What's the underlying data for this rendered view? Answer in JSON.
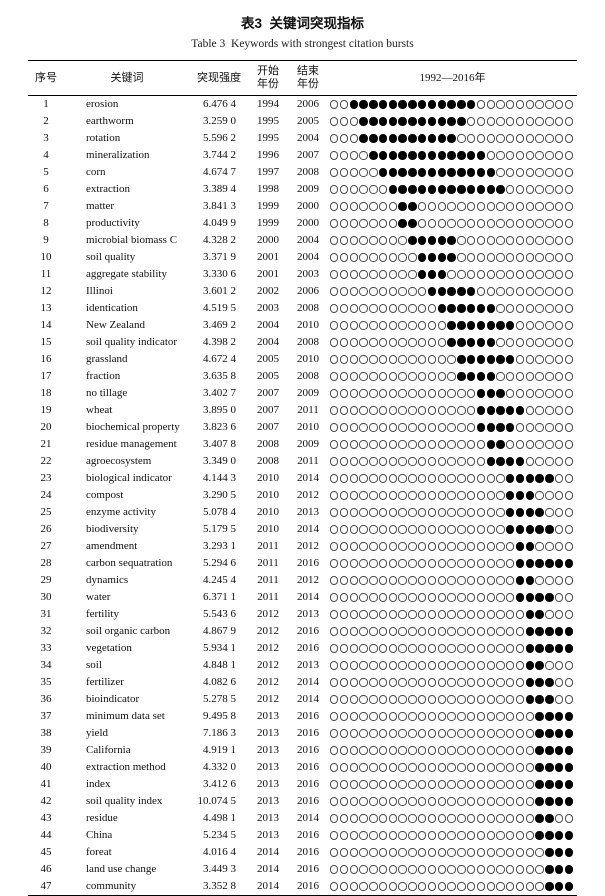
{
  "title_cn": "表3  关键词突现指标",
  "title_en": "Table 3  Keywords with strongest citation bursts",
  "columns": {
    "index": "序号",
    "keyword": "关键词",
    "strength": "突现强度",
    "start_line1": "开始",
    "start_line2": "年份",
    "end_line1": "结束",
    "end_line2": "年份",
    "timeline": "1992—2016年"
  },
  "timeline_range": {
    "start": 1992,
    "end": 2016
  },
  "rows": [
    {
      "index": 1,
      "keyword": "erosion",
      "strength": "6.476 4",
      "start": 1994,
      "end": 2006
    },
    {
      "index": 2,
      "keyword": "earthworm",
      "strength": "3.259 0",
      "start": 1995,
      "end": 2005
    },
    {
      "index": 3,
      "keyword": "rotation",
      "strength": "5.596 2",
      "start": 1995,
      "end": 2004
    },
    {
      "index": 4,
      "keyword": "mineralization",
      "strength": "3.744 2",
      "start": 1996,
      "end": 2007
    },
    {
      "index": 5,
      "keyword": "corn",
      "strength": "4.674 7",
      "start": 1997,
      "end": 2008
    },
    {
      "index": 6,
      "keyword": "extraction",
      "strength": "3.389 4",
      "start": 1998,
      "end": 2009
    },
    {
      "index": 7,
      "keyword": "matter",
      "strength": "3.841 3",
      "start": 1999,
      "end": 2000
    },
    {
      "index": 8,
      "keyword": "productivity",
      "strength": "4.049 9",
      "start": 1999,
      "end": 2000
    },
    {
      "index": 9,
      "keyword": "microbial biomass C",
      "strength": "4.328 2",
      "start": 2000,
      "end": 2004
    },
    {
      "index": 10,
      "keyword": "soil quality",
      "strength": "3.371 9",
      "start": 2001,
      "end": 2004
    },
    {
      "index": 11,
      "keyword": "aggregate stability",
      "strength": "3.330 6",
      "start": 2001,
      "end": 2003
    },
    {
      "index": 12,
      "keyword": "Illinoi",
      "strength": "3.601 2",
      "start": 2002,
      "end": 2006
    },
    {
      "index": 13,
      "keyword": "identication",
      "strength": "4.519 5",
      "start": 2003,
      "end": 2008
    },
    {
      "index": 14,
      "keyword": "New Zealand",
      "strength": "3.469 2",
      "start": 2004,
      "end": 2010
    },
    {
      "index": 15,
      "keyword": "soil quality indicator",
      "strength": "4.398 2",
      "start": 2004,
      "end": 2008
    },
    {
      "index": 16,
      "keyword": "grassland",
      "strength": "4.672 4",
      "start": 2005,
      "end": 2010
    },
    {
      "index": 17,
      "keyword": "fraction",
      "strength": "3.635 8",
      "start": 2005,
      "end": 2008
    },
    {
      "index": 18,
      "keyword": "no tillage",
      "strength": "3.402 7",
      "start": 2007,
      "end": 2009
    },
    {
      "index": 19,
      "keyword": "wheat",
      "strength": "3.895 0",
      "start": 2007,
      "end": 2011
    },
    {
      "index": 20,
      "keyword": "biochemical property",
      "strength": "3.823 6",
      "start": 2007,
      "end": 2010
    },
    {
      "index": 21,
      "keyword": "residue management",
      "strength": "3.407 8",
      "start": 2008,
      "end": 2009
    },
    {
      "index": 22,
      "keyword": "agroecosystem",
      "strength": "3.349 0",
      "start": 2008,
      "end": 2011
    },
    {
      "index": 23,
      "keyword": "biological indicator",
      "strength": "4.144 3",
      "start": 2010,
      "end": 2014
    },
    {
      "index": 24,
      "keyword": "compost",
      "strength": "3.290 5",
      "start": 2010,
      "end": 2012
    },
    {
      "index": 25,
      "keyword": "enzyme activity",
      "strength": "5.078 4",
      "start": 2010,
      "end": 2013
    },
    {
      "index": 26,
      "keyword": "biodiversity",
      "strength": "5.179 5",
      "start": 2010,
      "end": 2014
    },
    {
      "index": 27,
      "keyword": "amendment",
      "strength": "3.293 1",
      "start": 2011,
      "end": 2012
    },
    {
      "index": 28,
      "keyword": "carbon sequatration",
      "strength": "5.294 6",
      "start": 2011,
      "end": 2016
    },
    {
      "index": 29,
      "keyword": "dynamics",
      "strength": "4.245 4",
      "start": 2011,
      "end": 2012
    },
    {
      "index": 30,
      "keyword": "water",
      "strength": "6.371 1",
      "start": 2011,
      "end": 2014
    },
    {
      "index": 31,
      "keyword": "fertility",
      "strength": "5.543 6",
      "start": 2012,
      "end": 2013
    },
    {
      "index": 32,
      "keyword": "soil organic carbon",
      "strength": "4.867 9",
      "start": 2012,
      "end": 2016
    },
    {
      "index": 33,
      "keyword": "vegetation",
      "strength": "5.934 1",
      "start": 2012,
      "end": 2016
    },
    {
      "index": 34,
      "keyword": "soil",
      "strength": "4.848 1",
      "start": 2012,
      "end": 2013
    },
    {
      "index": 35,
      "keyword": "fertilizer",
      "strength": "4.082 6",
      "start": 2012,
      "end": 2014
    },
    {
      "index": 36,
      "keyword": "bioindicator",
      "strength": "5.278 5",
      "start": 2012,
      "end": 2014
    },
    {
      "index": 37,
      "keyword": "minimum data set",
      "strength": "9.495 8",
      "start": 2013,
      "end": 2016
    },
    {
      "index": 38,
      "keyword": "yield",
      "strength": "7.186 3",
      "start": 2013,
      "end": 2016
    },
    {
      "index": 39,
      "keyword": "California",
      "strength": "4.919 1",
      "start": 2013,
      "end": 2016
    },
    {
      "index": 40,
      "keyword": "extraction method",
      "strength": "4.332 0",
      "start": 2013,
      "end": 2016
    },
    {
      "index": 41,
      "keyword": "index",
      "strength": "3.412 6",
      "start": 2013,
      "end": 2016
    },
    {
      "index": 42,
      "keyword": "soil quality index",
      "strength": "10.074 5",
      "start": 2013,
      "end": 2016
    },
    {
      "index": 43,
      "keyword": "residue",
      "strength": "4.498 1",
      "start": 2013,
      "end": 2014
    },
    {
      "index": 44,
      "keyword": "China",
      "strength": "5.234 5",
      "start": 2013,
      "end": 2016
    },
    {
      "index": 45,
      "keyword": "foreat",
      "strength": "4.016 4",
      "start": 2014,
      "end": 2016
    },
    {
      "index": 46,
      "keyword": "land use change",
      "strength": "3.449 3",
      "start": 2014,
      "end": 2016
    },
    {
      "index": 47,
      "keyword": "community",
      "strength": "3.352 8",
      "start": 2014,
      "end": 2016
    }
  ]
}
